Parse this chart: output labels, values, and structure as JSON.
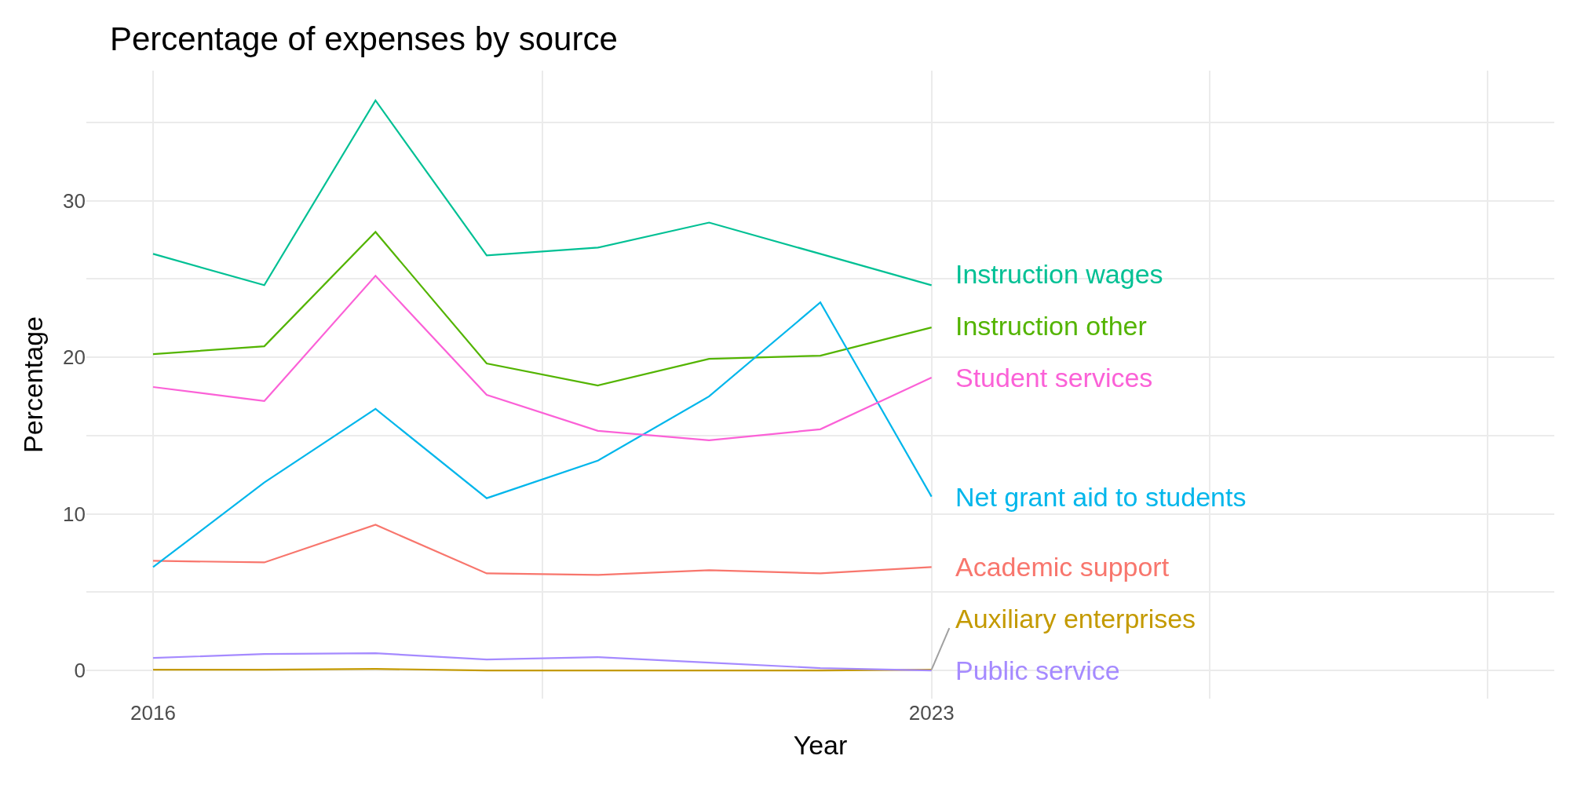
{
  "chart_data": {
    "type": "line",
    "title": "Percentage of expenses by source",
    "xlabel": "Year",
    "ylabel": "Percentage",
    "x": [
      2016,
      2017,
      2018,
      2019,
      2020,
      2021,
      2022,
      2023
    ],
    "series": [
      {
        "name": "Academic support",
        "color": "#f8766d",
        "values": [
          7.0,
          6.9,
          9.3,
          6.2,
          6.1,
          6.4,
          6.2,
          6.6
        ]
      },
      {
        "name": "Auxiliary enterprises",
        "color": "#c49a00",
        "values": [
          0.05,
          0.05,
          0.1,
          0,
          0,
          0,
          0,
          0.05
        ]
      },
      {
        "name": "Instruction other",
        "color": "#53b400",
        "values": [
          20.2,
          20.7,
          28.0,
          19.6,
          18.2,
          19.9,
          20.1,
          21.9
        ]
      },
      {
        "name": "Instruction wages",
        "color": "#00c094",
        "values": [
          26.6,
          24.6,
          36.4,
          26.5,
          27.0,
          28.6,
          26.6,
          24.6
        ]
      },
      {
        "name": "Net grant aid to students",
        "color": "#00b6eb",
        "values": [
          6.6,
          12.0,
          16.7,
          11.0,
          13.4,
          17.5,
          23.5,
          11.1
        ]
      },
      {
        "name": "Public service",
        "color": "#a58aff",
        "values": [
          0.8,
          1.05,
          1.1,
          0.7,
          0.85,
          0.5,
          0.15,
          0
        ]
      },
      {
        "name": "Student services",
        "color": "#fb61d7",
        "values": [
          18.1,
          17.2,
          25.2,
          17.6,
          15.3,
          14.7,
          15.4,
          18.7
        ]
      }
    ],
    "xlim": [
      2015.4,
      2028.6
    ],
    "xticks": [
      2016,
      {
        "value": 2019.5,
        "label": null
      },
      2023,
      {
        "value": 2025.5,
        "label": null
      },
      {
        "value": 2028,
        "label": null
      }
    ],
    "ylim": [
      -1.8,
      38.3
    ],
    "yticks": [
      0,
      {
        "value": 5,
        "label": null
      },
      10,
      {
        "value": 15,
        "label": null
      },
      20,
      {
        "value": 25,
        "label": null
      },
      30,
      {
        "value": 35,
        "label": null
      }
    ],
    "grid": true,
    "legend": false,
    "line_style": "solid",
    "marker": "none"
  }
}
